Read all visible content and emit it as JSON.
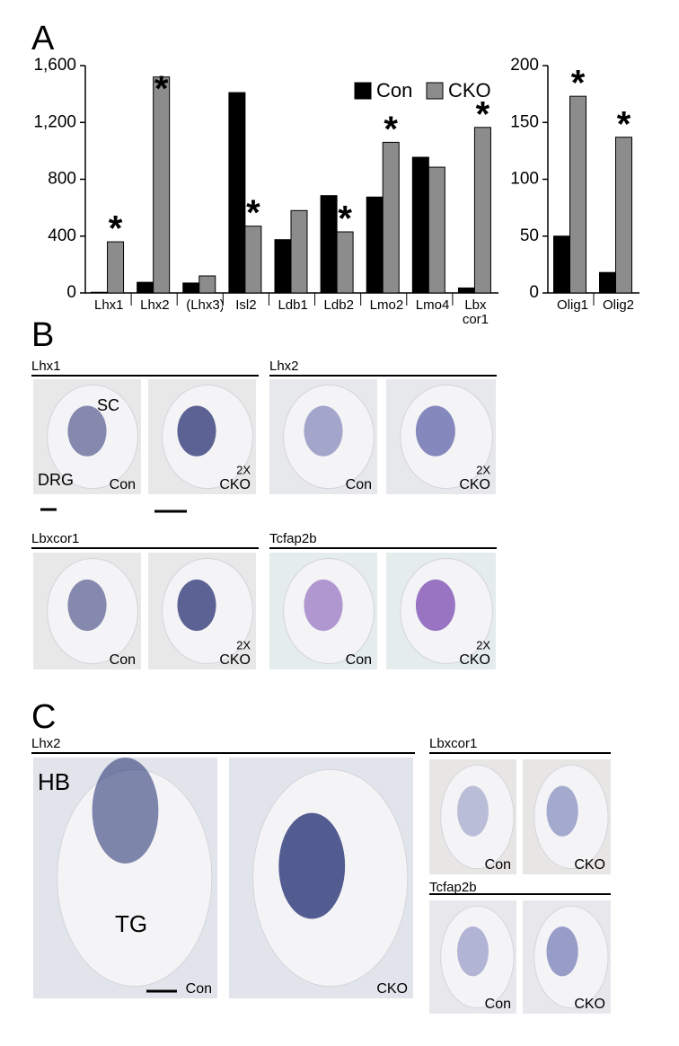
{
  "panel_a": {
    "label": "A"
  },
  "chart_data": [
    {
      "type": "bar",
      "categories": [
        "Lhx1",
        "Lhx2",
        "(Lhx3)",
        "Isl2",
        "Ldb1",
        "Ldb2",
        "Lmo2",
        "Lmo4",
        "Lbx cor1"
      ],
      "series": [
        {
          "name": "Con",
          "color": "#000000",
          "values": [
            5,
            75,
            70,
            1410,
            375,
            685,
            675,
            955,
            35
          ]
        },
        {
          "name": "CKO",
          "color": "#8c8c8c",
          "values": [
            360,
            1520,
            120,
            470,
            580,
            430,
            1060,
            885,
            1165
          ],
          "annotations": [
            "*",
            "*",
            null,
            "*",
            null,
            "*",
            "*",
            null,
            "*"
          ]
        }
      ],
      "ylim": [
        0,
        1600
      ],
      "yticks": [
        0,
        400,
        800,
        {
          "value": 1200,
          "label": "1,200"
        },
        {
          "value": 1600,
          "label": "1,600"
        }
      ],
      "legend": "upper right"
    },
    {
      "type": "bar",
      "categories": [
        "Olig1",
        "Olig2"
      ],
      "series": [
        {
          "color": "#000000",
          "values": [
            50,
            18
          ]
        },
        {
          "color": "#8c8c8c",
          "values": [
            173,
            137
          ],
          "annotations": [
            "*",
            "*"
          ]
        }
      ],
      "ylim": [
        0,
        200
      ],
      "yticks": [
        0,
        50,
        100,
        150,
        200
      ]
    }
  ],
  "panel_b": {
    "label": "B",
    "groups": [
      {
        "title": "Lhx1",
        "images": [
          {
            "regions": [
              "SC",
              "DRG"
            ],
            "caption": [
              "Con"
            ]
          },
          {
            "caption": [
              "2X",
              "CKO"
            ]
          }
        ]
      },
      {
        "title": "Lhx2",
        "images": [
          {
            "caption": [
              "Con"
            ]
          },
          {
            "caption": [
              "2X",
              "CKO"
            ]
          }
        ]
      },
      {
        "title": "Lbxcor1",
        "images": [
          {
            "caption": [
              "Con"
            ]
          },
          {
            "caption": [
              "2X",
              "CKO"
            ]
          }
        ]
      },
      {
        "title": "Tcfap2b",
        "images": [
          {
            "caption": [
              "Con"
            ]
          },
          {
            "caption": [
              "2X",
              "CKO"
            ]
          }
        ]
      }
    ]
  },
  "panel_c": {
    "label": "C",
    "groups": [
      {
        "title": "Lhx2",
        "images": [
          {
            "regions": [
              "HB",
              "TG"
            ],
            "caption": [
              "Con"
            ]
          },
          {
            "caption": [
              "CKO"
            ]
          }
        ]
      },
      {
        "title": "Lbxcor1",
        "images": [
          {
            "caption": [
              "Con"
            ]
          },
          {
            "caption": [
              "CKO"
            ]
          }
        ]
      },
      {
        "title": "Tcfap2b",
        "images": [
          {
            "caption": [
              "Con"
            ]
          },
          {
            "caption": [
              "CKO"
            ]
          }
        ]
      }
    ]
  }
}
